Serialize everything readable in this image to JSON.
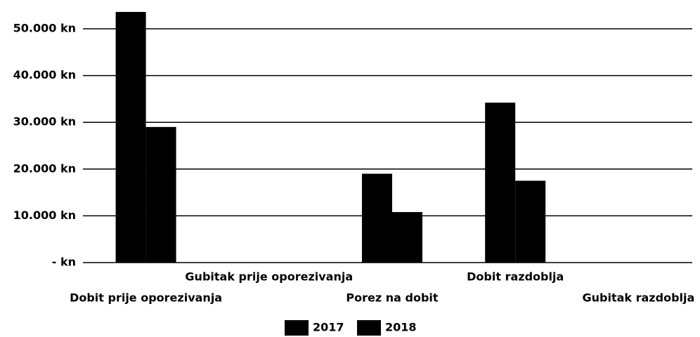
{
  "chart_data": {
    "type": "bar",
    "categories": [
      "Dobit prije oporezivanja",
      "Gubitak prije oporezivanja",
      "Porez na dobit",
      "Dobit razdoblja",
      "Gubitak razdoblja"
    ],
    "series": [
      {
        "name": "2017",
        "color": "#000000",
        "values": [
          53600,
          0,
          19000,
          34200,
          0
        ]
      },
      {
        "name": "2018",
        "color": "#000000",
        "values": [
          29000,
          0,
          10800,
          17500,
          0
        ]
      }
    ],
    "ylim": [
      0,
      55000
    ],
    "yticks": [
      {
        "value": 0,
        "label": "- kn"
      },
      {
        "value": 10000,
        "label": "10.000 kn"
      },
      {
        "value": 20000,
        "label": "20.000 kn"
      },
      {
        "value": 30000,
        "label": "30.000 kn"
      },
      {
        "value": 40000,
        "label": "40.000 kn"
      },
      {
        "value": 50000,
        "label": "50.000 kn"
      }
    ],
    "grid": true,
    "legend": "bottom"
  }
}
